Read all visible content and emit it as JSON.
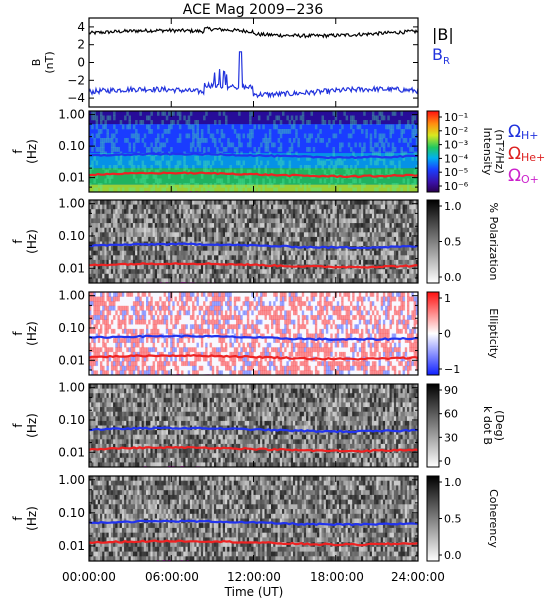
{
  "chart_data": {
    "type": "heatmap",
    "title": "ACE Mag 2009−236",
    "x_tick_labels": [
      "00:00:00",
      "06:00:00",
      "12:00:00",
      "18:00:00",
      "24:00:00"
    ],
    "xlabel": "Time (UT)",
    "panels": [
      {
        "kind": "line",
        "ylabel_line1": "B",
        "ylabel_line2": "(nT)",
        "y_ticks": [
          "4",
          "2",
          "0",
          "−2",
          "−4"
        ],
        "ylim": [
          -5,
          5
        ],
        "legend": [
          {
            "label": "|B|",
            "color": "#000000"
          },
          {
            "label": "B",
            "sub": "R",
            "color": "#2233dd"
          }
        ],
        "series": [
          {
            "name": "|B|",
            "color": "#000000",
            "base": 3.3
          },
          {
            "name": "B_R",
            "color": "#2233dd",
            "base": -3.3
          }
        ]
      },
      {
        "kind": "spectrogram",
        "colormap": "rainbow",
        "ylabel_line1": "f",
        "ylabel_line2": "(Hz)",
        "y_ticks": [
          "1.00",
          "0.10",
          "0.01"
        ],
        "colorbar_ticks": [
          "10⁻¹",
          "10⁻²",
          "10⁻³",
          "10⁻⁴",
          "10⁻⁵",
          "10⁻⁶"
        ],
        "colorbar_label": "Intensity",
        "colorbar_label2": "(nT²/Hz)",
        "gyro_legend": [
          {
            "label": "Ω",
            "sub": "H+",
            "color": "#2233dd"
          },
          {
            "label": "Ω",
            "sub": "He+",
            "color": "#dd2222"
          },
          {
            "label": "Ω",
            "sub": "O+",
            "color": "#cc22cc"
          }
        ]
      },
      {
        "kind": "spectrogram",
        "colormap": "gray",
        "ylabel_line1": "f",
        "ylabel_line2": "(Hz)",
        "y_ticks": [
          "1.00",
          "0.10",
          "0.01"
        ],
        "colorbar_ticks": [
          "1.0",
          "0.5",
          "0.0"
        ],
        "colorbar_label": "% Polarization"
      },
      {
        "kind": "spectrogram",
        "colormap": "bwr",
        "ylabel_line1": "f",
        "ylabel_line2": "(Hz)",
        "y_ticks": [
          "1.00",
          "0.10",
          "0.01"
        ],
        "colorbar_ticks": [
          "1",
          "0",
          "−1"
        ],
        "colorbar_label": "Ellipticity"
      },
      {
        "kind": "spectrogram",
        "colormap": "gray",
        "ylabel_line1": "f",
        "ylabel_line2": "(Hz)",
        "y_ticks": [
          "1.00",
          "0.10",
          "0.01"
        ],
        "colorbar_ticks": [
          "90",
          "60",
          "30",
          "0"
        ],
        "colorbar_label": "k dot B",
        "colorbar_label2": "(Deg)"
      },
      {
        "kind": "spectrogram",
        "colormap": "gray",
        "ylabel_line1": "f",
        "ylabel_line2": "(Hz)",
        "y_ticks": [
          "1.00",
          "0.10",
          "0.01"
        ],
        "colorbar_ticks": [
          "1.0",
          "0.5",
          "0.0"
        ],
        "colorbar_label": "Coherency"
      }
    ],
    "gyrofrequency_lines": [
      {
        "name": "H+",
        "color": "#2233ee",
        "f_hz": 0.05
      },
      {
        "name": "He+",
        "color": "#ee2222",
        "f_hz": 0.0125
      },
      {
        "name": "O+",
        "color": "#ee22ee",
        "f_hz": 0.003
      }
    ]
  }
}
